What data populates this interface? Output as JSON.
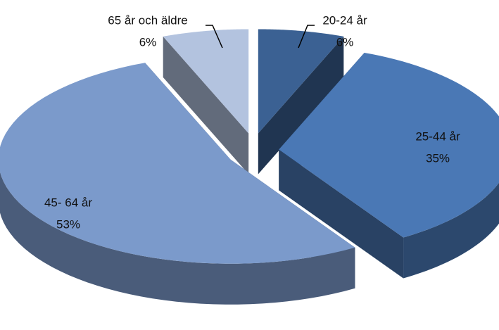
{
  "chart_data": {
    "type": "pie",
    "categories": [
      "20-24 år",
      "25-44 år",
      "45- 64 år",
      "65 år och äldre"
    ],
    "values": [
      6,
      35,
      53,
      6
    ],
    "value_labels": [
      "6%",
      "35%",
      "53%",
      "6%"
    ],
    "colors": [
      "#3b6193",
      "#4a78b5",
      "#7b9acb",
      "#b3c3df"
    ]
  }
}
